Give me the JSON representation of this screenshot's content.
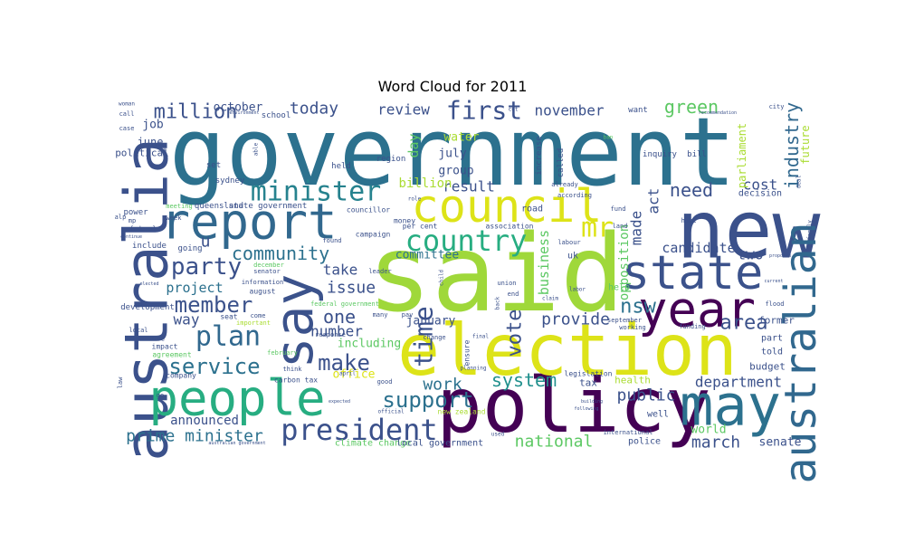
{
  "chart_data": {
    "type": "wordcloud",
    "title": "Word Cloud for 2011",
    "colors": [
      "#440154",
      "#472c7a",
      "#3b518b",
      "#2c718e",
      "#21908d",
      "#27ad81",
      "#5cc863",
      "#aadc32",
      "#dde318"
    ],
    "words": [
      {
        "text": "government",
        "weight": 100,
        "color": "#2c718e"
      },
      {
        "text": "said",
        "weight": 92,
        "color": "#9fd83a"
      },
      {
        "text": "new",
        "weight": 78,
        "color": "#3b518b"
      },
      {
        "text": "policy",
        "weight": 72,
        "color": "#440154"
      },
      {
        "text": "election",
        "weight": 70,
        "color": "#dde318"
      },
      {
        "text": "australia",
        "weight": 66,
        "color": "#3b518b"
      },
      {
        "text": "people",
        "weight": 62,
        "color": "#27ad81"
      },
      {
        "text": "say",
        "weight": 58,
        "color": "#3b528b"
      },
      {
        "text": "may",
        "weight": 56,
        "color": "#2c718e"
      },
      {
        "text": "state",
        "weight": 54,
        "color": "#3b528b"
      },
      {
        "text": "council",
        "weight": 52,
        "color": "#dde318"
      },
      {
        "text": "report",
        "weight": 50,
        "color": "#31688e"
      },
      {
        "text": "year",
        "weight": 49,
        "color": "#440154"
      },
      {
        "text": "australian",
        "weight": 46,
        "color": "#31688e"
      },
      {
        "text": "president",
        "weight": 36,
        "color": "#3b518b"
      },
      {
        "text": "country",
        "weight": 33,
        "color": "#27ad81"
      },
      {
        "text": "minister",
        "weight": 32,
        "color": "#26828e"
      },
      {
        "text": "first",
        "weight": 30,
        "color": "#3b518b"
      },
      {
        "text": "time",
        "weight": 29,
        "color": "#3b518b"
      },
      {
        "text": "plan",
        "weight": 29,
        "color": "#31688e"
      },
      {
        "text": "mr",
        "weight": 28,
        "color": "#dde318"
      },
      {
        "text": "service",
        "weight": 26,
        "color": "#2c718e"
      },
      {
        "text": "party",
        "weight": 26,
        "color": "#3b518b"
      },
      {
        "text": "member",
        "weight": 25,
        "color": "#3b528b"
      },
      {
        "text": "make",
        "weight": 25,
        "color": "#3b518b"
      },
      {
        "text": "support",
        "weight": 25,
        "color": "#2c718e"
      },
      {
        "text": "nsw",
        "weight": 24,
        "color": "#2c718e"
      },
      {
        "text": "area",
        "weight": 23,
        "color": "#3b518b"
      },
      {
        "text": "community",
        "weight": 22,
        "color": "#2c718e"
      },
      {
        "text": "million",
        "weight": 22,
        "color": "#3b518b"
      },
      {
        "text": "need",
        "weight": 22,
        "color": "#3b518b"
      },
      {
        "text": "one",
        "weight": 22,
        "color": "#3b518b"
      },
      {
        "text": "system",
        "weight": 21,
        "color": "#21908d"
      },
      {
        "text": "industry",
        "weight": 20,
        "color": "#31688e"
      },
      {
        "text": "vote",
        "weight": 20,
        "color": "#3b518b"
      },
      {
        "text": "green",
        "weight": 20,
        "color": "#5cc863"
      },
      {
        "text": "work",
        "weight": 20,
        "color": "#2c718e"
      },
      {
        "text": "today",
        "weight": 19,
        "color": "#3b518b"
      },
      {
        "text": "provide",
        "weight": 19,
        "color": "#3b518b"
      },
      {
        "text": "public",
        "weight": 19,
        "color": "#3b518b"
      },
      {
        "text": "prime minister",
        "weight": 18,
        "color": "#2c718e"
      },
      {
        "text": "national",
        "weight": 18,
        "color": "#5cc863"
      },
      {
        "text": "march",
        "weight": 17,
        "color": "#3b518b"
      },
      {
        "text": "number",
        "weight": 17,
        "color": "#3b518b"
      },
      {
        "text": "issue",
        "weight": 17,
        "color": "#3b518b"
      },
      {
        "text": "november",
        "weight": 17,
        "color": "#3b518b"
      },
      {
        "text": "review",
        "weight": 17,
        "color": "#3b518b"
      },
      {
        "text": "department",
        "weight": 16,
        "color": "#3b518b"
      },
      {
        "text": "result",
        "weight": 16,
        "color": "#3b518b"
      },
      {
        "text": "take",
        "weight": 16,
        "color": "#3b518b"
      },
      {
        "text": "u",
        "weight": 16,
        "color": "#3b518b"
      },
      {
        "text": "project",
        "weight": 15,
        "color": "#2c718e"
      },
      {
        "text": "candidate",
        "weight": 15,
        "color": "#3b518b"
      },
      {
        "text": "way",
        "weight": 15,
        "color": "#3b518b"
      },
      {
        "text": "cost",
        "weight": 15,
        "color": "#3b518b"
      },
      {
        "text": "two",
        "weight": 15,
        "color": "#3b518b"
      },
      {
        "text": "made",
        "weight": 15,
        "color": "#3b518b"
      },
      {
        "text": "act",
        "weight": 15,
        "color": "#3b518b"
      },
      {
        "text": "business",
        "weight": 14,
        "color": "#5cc863"
      },
      {
        "text": "opposition",
        "weight": 14,
        "color": "#5cc863"
      },
      {
        "text": "day",
        "weight": 14,
        "color": "#5cc863"
      },
      {
        "text": "billion",
        "weight": 14,
        "color": "#aadc32"
      },
      {
        "text": "announced",
        "weight": 13,
        "color": "#3b518b"
      },
      {
        "text": "world",
        "weight": 13,
        "color": "#5cc863"
      },
      {
        "text": "senate",
        "weight": 12,
        "color": "#3b518b"
      },
      {
        "text": "including",
        "weight": 12,
        "color": "#5cc863"
      },
      {
        "text": "office",
        "weight": 12,
        "color": "#dde318"
      },
      {
        "text": "october",
        "weight": 12,
        "color": "#3b518b"
      },
      {
        "text": "committee",
        "weight": 12,
        "color": "#2c718e"
      },
      {
        "text": "group",
        "weight": 12,
        "color": "#3b518b"
      },
      {
        "text": "water",
        "weight": 12,
        "color": "#aadc32"
      },
      {
        "text": "july",
        "weight": 12,
        "color": "#3b518b"
      },
      {
        "text": "january",
        "weight": 12,
        "color": "#3b518b"
      },
      {
        "text": "future",
        "weight": 12,
        "color": "#aadc32"
      },
      {
        "text": "parliament",
        "weight": 11,
        "color": "#aadc32"
      },
      {
        "text": "job",
        "weight": 11,
        "color": "#3b518b"
      },
      {
        "text": "june",
        "weight": 11,
        "color": "#3b518b"
      },
      {
        "text": "political",
        "weight": 10,
        "color": "#3b518b"
      },
      {
        "text": "budget",
        "weight": 10,
        "color": "#3b518b"
      },
      {
        "text": "climate change",
        "weight": 10,
        "color": "#5cc863"
      },
      {
        "text": "local government",
        "weight": 10,
        "color": "#3b518b"
      },
      {
        "text": "police",
        "weight": 10,
        "color": "#3b518b"
      },
      {
        "text": "health",
        "weight": 10,
        "color": "#aadc32"
      },
      {
        "text": "tax",
        "weight": 10,
        "color": "#3b518b"
      },
      {
        "text": "told",
        "weight": 10,
        "color": "#3b518b"
      },
      {
        "text": "former",
        "weight": 10,
        "color": "#3b518b"
      },
      {
        "text": "decision",
        "weight": 9,
        "color": "#3b518b"
      },
      {
        "text": "part",
        "weight": 9,
        "color": "#3b518b"
      },
      {
        "text": "road",
        "weight": 9,
        "color": "#3b518b"
      },
      {
        "text": "help",
        "weight": 9,
        "color": "#5cc863"
      },
      {
        "text": "uk",
        "weight": 9,
        "color": "#3b518b"
      },
      {
        "text": "well",
        "weight": 9,
        "color": "#3b518b"
      },
      {
        "text": "state government",
        "weight": 9,
        "color": "#3b518b"
      },
      {
        "text": "queensland",
        "weight": 9,
        "color": "#3b518b"
      },
      {
        "text": "school",
        "weight": 9,
        "color": "#3b518b"
      },
      {
        "text": "want",
        "weight": 8,
        "color": "#3b518b"
      },
      {
        "text": "bill",
        "weight": 8,
        "color": "#3b518b"
      },
      {
        "text": "inquiry",
        "weight": 8,
        "color": "#3b518b"
      },
      {
        "text": "called",
        "weight": 8,
        "color": "#3b518b"
      },
      {
        "text": "increase",
        "weight": 8,
        "color": "#3b518b"
      },
      {
        "text": "region",
        "weight": 8,
        "color": "#3b518b"
      },
      {
        "text": "held",
        "weight": 8,
        "color": "#3b518b"
      },
      {
        "text": "set",
        "weight": 8,
        "color": "#3b518b"
      },
      {
        "text": "sydney",
        "weight": 8,
        "color": "#3b518b"
      },
      {
        "text": "money",
        "weight": 8,
        "color": "#3b518b"
      },
      {
        "text": "councillor",
        "weight": 8,
        "color": "#3b518b"
      },
      {
        "text": "per cent",
        "weight": 8,
        "color": "#3b518b"
      },
      {
        "text": "association",
        "weight": 8,
        "color": "#3b518b"
      },
      {
        "text": "campaign",
        "weight": 8,
        "color": "#3b518b"
      },
      {
        "text": "power",
        "weight": 8,
        "color": "#3b518b"
      },
      {
        "text": "include",
        "weight": 8,
        "color": "#3b518b"
      },
      {
        "text": "going",
        "weight": 8,
        "color": "#3b518b"
      },
      {
        "text": "development",
        "weight": 8,
        "color": "#3b518b"
      },
      {
        "text": "information",
        "weight": 7,
        "color": "#3b518b"
      },
      {
        "text": "seat",
        "weight": 8,
        "color": "#3b518b"
      },
      {
        "text": "impact",
        "weight": 8,
        "color": "#3b518b"
      },
      {
        "text": "agreement",
        "weight": 8,
        "color": "#5cc863"
      },
      {
        "text": "company",
        "weight": 8,
        "color": "#3b518b"
      },
      {
        "text": "carbon tax",
        "weight": 8,
        "color": "#3b518b"
      },
      {
        "text": "new zealand",
        "weight": 8,
        "color": "#aadc32"
      },
      {
        "text": "international",
        "weight": 7,
        "color": "#3b518b"
      },
      {
        "text": "legislation",
        "weight": 7,
        "color": "#3b518b"
      },
      {
        "text": "funding",
        "weight": 7,
        "color": "#3b518b"
      },
      {
        "text": "ensure",
        "weight": 7,
        "color": "#3b518b"
      },
      {
        "text": "fund",
        "weight": 7,
        "color": "#3b518b"
      },
      {
        "text": "land",
        "weight": 7,
        "color": "#3b518b"
      },
      {
        "text": "labour",
        "weight": 7,
        "color": "#3b518b"
      },
      {
        "text": "already",
        "weight": 7,
        "color": "#3b518b"
      },
      {
        "text": "according",
        "weight": 7,
        "color": "#3b518b"
      },
      {
        "text": "leader",
        "weight": 7,
        "color": "#3b518b"
      },
      {
        "text": "union",
        "weight": 7,
        "color": "#3b518b"
      },
      {
        "text": "end",
        "weight": 7,
        "color": "#3b518b"
      },
      {
        "text": "found",
        "weight": 7,
        "color": "#3b518b"
      },
      {
        "text": "week",
        "weight": 7,
        "color": "#3b518b"
      },
      {
        "text": "meeting",
        "weight": 7,
        "color": "#5cc863"
      },
      {
        "text": "federal",
        "weight": 7,
        "color": "#3b518b"
      },
      {
        "text": "federal government",
        "weight": 7,
        "color": "#5cc863"
      },
      {
        "text": "december",
        "weight": 7,
        "color": "#5cc863"
      },
      {
        "text": "senator",
        "weight": 7,
        "color": "#3b518b"
      },
      {
        "text": "august",
        "weight": 7,
        "color": "#3b518b"
      },
      {
        "text": "response",
        "weight": 7,
        "color": "#3b518b"
      },
      {
        "text": "think",
        "weight": 7,
        "color": "#3b518b"
      },
      {
        "text": "use",
        "weight": 7,
        "color": "#3b518b"
      },
      {
        "text": "local",
        "weight": 7,
        "color": "#3b518b"
      },
      {
        "text": "february",
        "weight": 7,
        "color": "#5cc863"
      },
      {
        "text": "important",
        "weight": 7,
        "color": "#aadc32"
      },
      {
        "text": "come",
        "weight": 7,
        "color": "#3b518b"
      },
      {
        "text": "many",
        "weight": 7,
        "color": "#3b518b"
      },
      {
        "text": "pay",
        "weight": 7,
        "color": "#3b518b"
      },
      {
        "text": "change",
        "weight": 7,
        "color": "#3b518b"
      },
      {
        "text": "good",
        "weight": 7,
        "color": "#3b518b"
      },
      {
        "text": "official",
        "weight": 6,
        "color": "#3b518b"
      },
      {
        "text": "home",
        "weight": 7,
        "color": "#3b518b"
      },
      {
        "text": "september",
        "weight": 7,
        "color": "#3b518b"
      },
      {
        "text": "working",
        "weight": 7,
        "color": "#3b518b"
      },
      {
        "text": "mp",
        "weight": 7,
        "color": "#3b518b"
      },
      {
        "text": "alp",
        "weight": 7,
        "color": "#3b518b"
      },
      {
        "text": "law",
        "weight": 7,
        "color": "#3b518b"
      },
      {
        "text": "go",
        "weight": 7,
        "color": "#3b518b"
      },
      {
        "text": "case",
        "weight": 7,
        "color": "#3b518b"
      },
      {
        "text": "call",
        "weight": 7,
        "color": "#3b518b"
      },
      {
        "text": "woman",
        "weight": 6,
        "color": "#3b518b"
      },
      {
        "text": "city",
        "weight": 7,
        "color": "#3b518b"
      },
      {
        "text": "flood",
        "weight": 7,
        "color": "#3b518b"
      },
      {
        "text": "cut",
        "weight": 6,
        "color": "#3b518b"
      },
      {
        "text": "april",
        "weight": 6,
        "color": "#3b518b"
      },
      {
        "text": "family",
        "weight": 6,
        "color": "#3b518b"
      },
      {
        "text": "deal",
        "weight": 6,
        "color": "#3b518b"
      },
      {
        "text": "ban",
        "weight": 6,
        "color": "#5cc863"
      },
      {
        "text": "labor",
        "weight": 6,
        "color": "#3b518b"
      },
      {
        "text": "claim",
        "weight": 6,
        "color": "#3b518b"
      },
      {
        "text": "back",
        "weight": 6,
        "color": "#3b518b"
      },
      {
        "text": "child",
        "weight": 6,
        "color": "#3b518b"
      },
      {
        "text": "final",
        "weight": 6,
        "color": "#3b518b"
      },
      {
        "text": "able",
        "weight": 6,
        "color": "#3b518b"
      },
      {
        "text": "role",
        "weight": 6,
        "color": "#3b518b"
      },
      {
        "text": "planning",
        "weight": 6,
        "color": "#3b518b"
      },
      {
        "text": "expected",
        "weight": 6,
        "color": "#3b518b"
      },
      {
        "text": "used",
        "weight": 6,
        "color": "#3b518b"
      },
      {
        "text": "building",
        "weight": 6,
        "color": "#3b518b"
      },
      {
        "text": "following",
        "weight": 6,
        "color": "#3b518b"
      },
      {
        "text": "australian government",
        "weight": 6,
        "color": "#3b518b"
      },
      {
        "text": "elected",
        "weight": 6,
        "color": "#3b518b"
      },
      {
        "text": "continue",
        "weight": 6,
        "color": "#3b518b"
      },
      {
        "text": "environment",
        "weight": 6,
        "color": "#3b518b"
      },
      {
        "text": "recommendation",
        "weight": 6,
        "color": "#3b518b"
      },
      {
        "text": "proposed",
        "weight": 6,
        "color": "#3b518b"
      },
      {
        "text": "current",
        "weight": 6,
        "color": "#3b518b"
      }
    ]
  }
}
